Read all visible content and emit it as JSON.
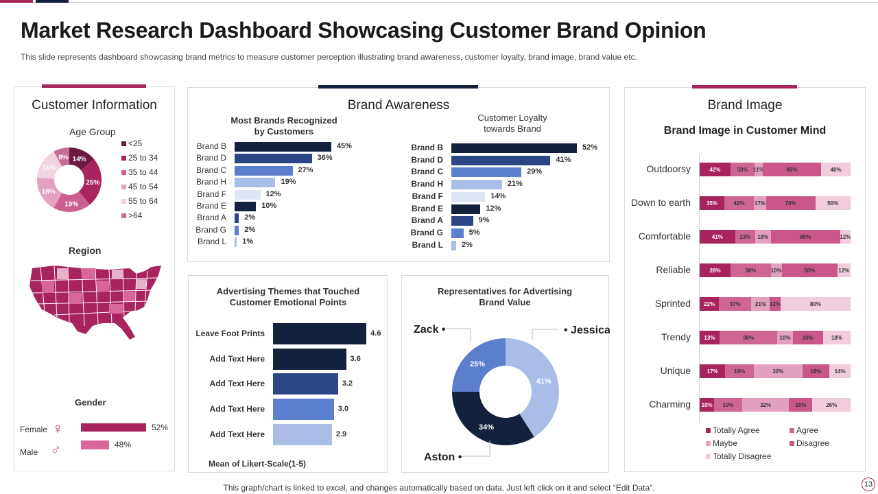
{
  "header": {
    "title": "Market Research Dashboard Showcasing Customer Brand Opinion",
    "subtitle": "This slide represents dashboard showcasing brand metrics to measure customer perception illustrating brand awareness, customer loyalty, brand image, brand value etc."
  },
  "colors": {
    "pink": "#a8245e",
    "navy": "#14213d"
  },
  "customer_info": {
    "title": "Customer Information",
    "age_group": {
      "title": "Age Group",
      "slices": [
        {
          "label": "<25",
          "value": 14,
          "color": "#6d1a42"
        },
        {
          "label": "25 to 34",
          "value": 25,
          "color": "#a8245e"
        },
        {
          "label": "35 to 44",
          "value": 19,
          "color": "#cc5f90"
        },
        {
          "label": "45 to 54",
          "value": 18,
          "color": "#e4a2c0"
        },
        {
          "label": "55 to 64",
          "value": 16,
          "color": "#f3d3e1"
        },
        {
          "label": ">64",
          "value": 8,
          "color": "#c76b97"
        }
      ]
    },
    "region": {
      "title": "Region",
      "map_icon": "us-map"
    },
    "gender": {
      "title": "Gender",
      "items": [
        {
          "label": "Female",
          "value": 52,
          "display": "52%",
          "icon": "female-symbol",
          "color": "#a8245e"
        },
        {
          "label": "Male",
          "value": 48,
          "display": "48%",
          "icon": "male-symbol",
          "color": "#d9669b"
        }
      ]
    }
  },
  "brand_awareness": {
    "title": "Brand Awareness",
    "charts": [
      {
        "type": "bar",
        "title": "Most Brands Recognized by Customers",
        "categories": [
          "Brand B",
          "Brand D",
          "Brand C",
          "Brand H",
          "Brand F",
          "Brand E",
          "Brand A",
          "Brand G",
          "Brand L"
        ],
        "values": [
          45,
          36,
          27,
          19,
          12,
          10,
          2,
          2,
          1
        ]
      },
      {
        "type": "bar",
        "title": "Customer Loyalty towards Brand",
        "categories": [
          "Brand B",
          "Brand D",
          "Brand C",
          "Brand H",
          "Brand F",
          "Brand E",
          "Brand A",
          "Brand G",
          "Brand L"
        ],
        "values": [
          52,
          41,
          29,
          21,
          14,
          12,
          9,
          5,
          2
        ]
      }
    ],
    "bar_colors": [
      "#14213d",
      "#2b4585",
      "#5b7fcc",
      "#a9bde6",
      "#dde5f5"
    ]
  },
  "advertising": {
    "type": "bar",
    "title": "Advertising Themes that Touched Customer Emotional Points",
    "categories": [
      "Leave Foot Prints",
      "Add Text Here",
      "Add Text Here",
      "Add Text Here",
      "Add Text Here"
    ],
    "values": [
      4.6,
      3.6,
      3.2,
      3.0,
      2.9
    ],
    "colors": [
      "#14213d",
      "#14213d",
      "#2b4585",
      "#5b7fcc",
      "#a9bde6"
    ],
    "xlabel": "Mean of Likert-Scale(1-5)"
  },
  "representatives": {
    "type": "pie",
    "title": "Representatives for Advertising Brand Value",
    "slices": [
      {
        "label": "Jessica",
        "value": 41,
        "color": "#a9bde6"
      },
      {
        "label": "Aston",
        "value": 34,
        "color": "#14213d"
      },
      {
        "label": "Zack",
        "value": 25,
        "color": "#5b7fcc"
      }
    ]
  },
  "brand_image": {
    "title": "Brand Image",
    "chart_title": "Brand Image in Customer Mind",
    "series": [
      {
        "name": "Totally Agree",
        "color": "#a8245e"
      },
      {
        "name": "Agree",
        "color": "#cf6593"
      },
      {
        "name": "Maybe",
        "color": "#e3a1c0"
      },
      {
        "name": "Disagree",
        "color": "#c9578a"
      },
      {
        "name": "Totally Disagree",
        "color": "#f0ccdc"
      }
    ],
    "rows": [
      {
        "label": "Outdoorsy",
        "values": [
          42,
          33,
          11,
          80,
          40
        ]
      },
      {
        "label": "Down to earth",
        "values": [
          35,
          42,
          17,
          70,
          50
        ]
      },
      {
        "label": "Comfortable",
        "values": [
          41,
          23,
          18,
          80,
          12
        ]
      },
      {
        "label": "Reliable",
        "values": [
          28,
          36,
          10,
          50,
          12
        ]
      },
      {
        "label": "Sprinted",
        "values": [
          22,
          37,
          21,
          12,
          80
        ]
      },
      {
        "label": "Trendy",
        "values": [
          13,
          38,
          10,
          20,
          18
        ]
      },
      {
        "label": "Unique",
        "values": [
          17,
          19,
          32,
          18,
          14
        ]
      },
      {
        "label": "Charming",
        "values": [
          10,
          19,
          32,
          16,
          26
        ]
      }
    ]
  },
  "footer": {
    "note": "This graph/chart is linked to excel, and changes automatically based on data. Just left click on it and select “Edit Data”.",
    "page": "13"
  }
}
